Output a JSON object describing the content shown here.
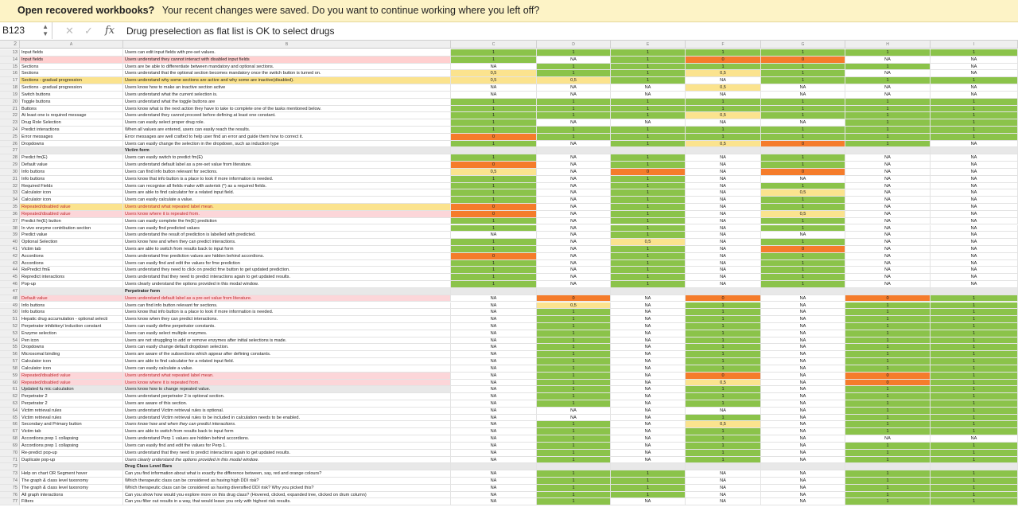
{
  "banner": {
    "question": "Open recovered workbooks?",
    "message": "Your recent changes were saved. Do you want to continue working where you left off?"
  },
  "formula_bar": {
    "cell_ref": "B123",
    "fx": "fx",
    "formula": "Drug preselection as flat list is OK to select drugs"
  },
  "sheet": {
    "top_row_label": "2",
    "columns": [
      "A",
      "B",
      "C",
      "D",
      "E",
      "F",
      "G",
      "H",
      "I"
    ],
    "rows": [
      {
        "n": "13",
        "a": "Input fields",
        "b": "Users can edit input fields with pre-set values.",
        "v": [
          "1",
          "1",
          "1",
          "1",
          "1",
          "1",
          "1"
        ]
      },
      {
        "n": "14",
        "a": "Input fields",
        "b": "Users understand they cannot interact with disabled input fields",
        "v": [
          "1",
          "NA",
          "1",
          "0",
          "0",
          "NA",
          "NA"
        ],
        "hl": "p"
      },
      {
        "n": "15",
        "a": "Sections",
        "b": "Users are be able to differentiate between mandatory and optional sections.",
        "v": [
          "NA",
          "1",
          "1",
          "1",
          "1",
          "1",
          "NA"
        ]
      },
      {
        "n": "16",
        "a": "Sections",
        "b": "Users understand that the optional section becomes mandatory once the switch button is turned on.",
        "v": [
          "0,5",
          "1",
          "1",
          "0,5",
          "1",
          "NA",
          "NA"
        ]
      },
      {
        "n": "17",
        "a": "Sections - gradual progression",
        "b": "Users understand why some sections are active and why some are inactive(disabled).",
        "v": [
          "0,5",
          "0,5",
          "1",
          "NA",
          "1",
          "1",
          "1"
        ],
        "hl": "y"
      },
      {
        "n": "18",
        "a": "Sections - gradual progression",
        "b": "Users know how to make an inactive section active",
        "v": [
          "NA",
          "NA",
          "NA",
          "0,5",
          "NA",
          "NA",
          "NA"
        ]
      },
      {
        "n": "19",
        "a": "Switch buttons",
        "b": "Users understand what the current selection is.",
        "v": [
          "NA",
          "NA",
          "NA",
          "NA",
          "NA",
          "NA",
          "NA"
        ]
      },
      {
        "n": "20",
        "a": "Toggle buttons",
        "b": "Users understand what the toggle buttons are",
        "v": [
          "1",
          "1",
          "1",
          "1",
          "1",
          "1",
          "1"
        ]
      },
      {
        "n": "21",
        "a": "Buttons",
        "b": "Users know what is the next action they have to take to complete one of the tasks mentioned below.",
        "v": [
          "1",
          "1",
          "1",
          "1",
          "1",
          "1",
          "1"
        ]
      },
      {
        "n": "22",
        "a": "At least one is required message",
        "b": "Users understand they cannot proceed before defining at least one constant.",
        "v": [
          "1",
          "1",
          "1",
          "0,5",
          "1",
          "1",
          "1"
        ]
      },
      {
        "n": "23",
        "a": "Drug Role Selection",
        "b": "Users can easily select proper drug role.",
        "v": [
          "1",
          "NA",
          "NA",
          "NA",
          "NA",
          "1",
          "1"
        ]
      },
      {
        "n": "24",
        "a": "Predict interactions",
        "b": "When all values are entered, users can easily reach the results.",
        "v": [
          "1",
          "1",
          "1",
          "1",
          "1",
          "1",
          "1"
        ]
      },
      {
        "n": "25",
        "a": "Error messages",
        "b": "Error messages are well crafted to help user find an error and guide them how to correct it.",
        "v": [
          "0",
          "1",
          "1",
          "1",
          "1",
          "1",
          "1"
        ]
      },
      {
        "n": "26",
        "a": "Dropdowns",
        "b": "Users can easily change the selection in the dropdown, such as induction type",
        "v": [
          "1",
          "NA",
          "1",
          "0,5",
          "0",
          "1",
          "NA"
        ]
      },
      {
        "n": "27",
        "a": "",
        "b": "Victim form",
        "v": [
          "",
          "",
          "",
          "",
          "",
          "",
          ""
        ],
        "sec": true
      },
      {
        "n": "28",
        "a": "Predict fm(E)",
        "b": "Users can easily switch to predict fm(E)",
        "v": [
          "1",
          "NA",
          "1",
          "NA",
          "1",
          "NA",
          "NA"
        ]
      },
      {
        "n": "29",
        "a": "Default value",
        "b": "Users understand default label as a pre-set value from literature.",
        "v": [
          "0",
          "NA",
          "1",
          "NA",
          "1",
          "NA",
          "NA"
        ]
      },
      {
        "n": "30",
        "a": "Info buttons",
        "b": "Users can find info button relevant for sections.",
        "v": [
          "0,5",
          "NA",
          "0",
          "NA",
          "0",
          "NA",
          "NA"
        ]
      },
      {
        "n": "31",
        "a": "Info buttons",
        "b": "Users know that info button is a place to look if more information is needed.",
        "v": [
          "1",
          "NA",
          "1",
          "NA",
          "NA",
          "NA",
          "NA"
        ]
      },
      {
        "n": "32",
        "a": "Required Fields",
        "b": "Users can recognise all fields make with asterisk (*) as a required fields.",
        "v": [
          "1",
          "NA",
          "1",
          "NA",
          "1",
          "NA",
          "NA"
        ]
      },
      {
        "n": "33",
        "a": "Calculator icon",
        "b": "Users are able to find calculator for a related input field.",
        "v": [
          "1",
          "NA",
          "1",
          "NA",
          "0,5",
          "NA",
          "NA"
        ]
      },
      {
        "n": "34",
        "a": "Calculator icon",
        "b": "Users can easily calculate a value.",
        "v": [
          "1",
          "NA",
          "1",
          "NA",
          "1",
          "NA",
          "NA"
        ]
      },
      {
        "n": "35",
        "a": "Repeated/disabled value",
        "b": "Users understand what repeated label mean.",
        "v": [
          "0",
          "NA",
          "1",
          "NA",
          "1",
          "NA",
          "NA"
        ],
        "hl": "yk"
      },
      {
        "n": "36",
        "a": "Repeated/disabled value",
        "b": "Users know where it is repeated from.",
        "v": [
          "0",
          "NA",
          "1",
          "NA",
          "0,5",
          "NA",
          "NA"
        ],
        "hl": "pk"
      },
      {
        "n": "37",
        "a": "Predict fm(E) button",
        "b": "Users can easily complete the fm(E) prediction",
        "v": [
          "1",
          "NA",
          "1",
          "NA",
          "1",
          "NA",
          "NA"
        ]
      },
      {
        "n": "38",
        "a": "In vivo enzyme contribution section",
        "b": "Users can easily find predicted values",
        "v": [
          "1",
          "NA",
          "1",
          "NA",
          "1",
          "NA",
          "NA"
        ]
      },
      {
        "n": "39",
        "a": "Predict value",
        "b": "Users understand the result of prediction is labelled with predicted.",
        "v": [
          "NA",
          "NA",
          "1",
          "NA",
          "NA",
          "NA",
          "NA"
        ]
      },
      {
        "n": "40",
        "a": "Optional Selection",
        "b": "Users know how and when they can predict interactions.",
        "v": [
          "1",
          "NA",
          "0,5",
          "NA",
          "1",
          "NA",
          "NA"
        ]
      },
      {
        "n": "41",
        "a": "Victim tab",
        "b": "Users are able to switch from results back to input form",
        "v": [
          "1",
          "NA",
          "1",
          "NA",
          "0",
          "NA",
          "NA"
        ]
      },
      {
        "n": "42",
        "a": "Accordions",
        "b": "Users understand fme prediction values are hidden behind accordions.",
        "v": [
          "0",
          "NA",
          "1",
          "NA",
          "1",
          "NA",
          "NA"
        ]
      },
      {
        "n": "43",
        "a": "Accordions",
        "b": "Users can easily find and edit the values for fme prediction",
        "v": [
          "1",
          "NA",
          "1",
          "NA",
          "1",
          "NA",
          "NA"
        ]
      },
      {
        "n": "44",
        "a": "RePredict fmE",
        "b": "Users understand they need to click on predict fme button to get updated prediction.",
        "v": [
          "1",
          "NA",
          "1",
          "NA",
          "1",
          "NA",
          "NA"
        ]
      },
      {
        "n": "45",
        "a": "Repredict interactions",
        "b": "Users understand that they need to predict interactions again to get updated results.",
        "v": [
          "1",
          "NA",
          "1",
          "NA",
          "1",
          "NA",
          "NA"
        ]
      },
      {
        "n": "46",
        "a": "Pop-up",
        "b": "Users clearly understand the options provided in this modal window.",
        "v": [
          "1",
          "NA",
          "1",
          "NA",
          "1",
          "NA",
          "NA"
        ]
      },
      {
        "n": "47",
        "a": "",
        "b": "Perpetrator form",
        "v": [
          "",
          "",
          "",
          "",
          "",
          "",
          ""
        ],
        "sec": true
      },
      {
        "n": "48",
        "a": "Default value",
        "b": "Users understand default label as a pre-set value from literature.",
        "v": [
          "NA",
          "0",
          "NA",
          "0",
          "NA",
          "0",
          "1"
        ],
        "hl": "pk"
      },
      {
        "n": "49",
        "a": "Info buttons",
        "b": "Users can find info button relevant for sections.",
        "v": [
          "NA",
          "0,5",
          "NA",
          "1",
          "NA",
          "1",
          "1"
        ]
      },
      {
        "n": "50",
        "a": "Info buttons",
        "b": "Users know that info button is a place to look if more information is needed.",
        "v": [
          "NA",
          "1",
          "NA",
          "1",
          "NA",
          "1",
          "1"
        ]
      },
      {
        "n": "51",
        "a": "Hepatic drug accumulation - optional selecti",
        "b": "Users know when they can predict interactions.",
        "v": [
          "NA",
          "1",
          "NA",
          "1",
          "NA",
          "1",
          "1"
        ]
      },
      {
        "n": "52",
        "a": "Perpetrator inhibitory/ induction constant",
        "b": "Users can easily define perpetrator constants.",
        "v": [
          "NA",
          "1",
          "NA",
          "1",
          "NA",
          "1",
          "1"
        ]
      },
      {
        "n": "53",
        "a": "Enzyme selection",
        "b": "Users can easily select multiple enzymes.",
        "v": [
          "NA",
          "1",
          "NA",
          "1",
          "NA",
          "1",
          "1"
        ]
      },
      {
        "n": "54",
        "a": "Pen icon",
        "b": "Users are not struggling to add or remove enzymes after initial selections is made.",
        "v": [
          "NA",
          "1",
          "NA",
          "1",
          "NA",
          "1",
          "1"
        ]
      },
      {
        "n": "55",
        "a": "Dropdowns",
        "b": "Users can easily change default dropdown selection.",
        "v": [
          "NA",
          "1",
          "NA",
          "1",
          "NA",
          "1",
          "1"
        ]
      },
      {
        "n": "56",
        "a": "Microsomal binding",
        "b": "Users are aware of the subsections which appear after defining constants.",
        "v": [
          "NA",
          "1",
          "NA",
          "1",
          "NA",
          "1",
          "1"
        ]
      },
      {
        "n": "57",
        "a": "Calculator icon",
        "b": "Users are able to find calculator for a related input field.",
        "v": [
          "NA",
          "1",
          "NA",
          "1",
          "NA",
          "1",
          "1"
        ]
      },
      {
        "n": "58",
        "a": "Calculator icon",
        "b": "Users can easily calculate a value.",
        "v": [
          "NA",
          "1",
          "NA",
          "1",
          "NA",
          "1",
          "1"
        ]
      },
      {
        "n": "59",
        "a": "Repeated/disabled value",
        "b": "Users understand what repeated label mean.",
        "v": [
          "NA",
          "1",
          "NA",
          "0",
          "NA",
          "0",
          "1"
        ],
        "hl": "pk"
      },
      {
        "n": "60",
        "a": "Repeated/disabled value",
        "b": "Users know where it is repeated from.",
        "v": [
          "NA",
          "1",
          "NA",
          "0,5",
          "NA",
          "0",
          "1"
        ],
        "hl": "pk"
      },
      {
        "n": "61",
        "a": "Updated fu mic calculation",
        "b": "Users know how to change repeated value.",
        "v": [
          "NA",
          "1",
          "NA",
          "1",
          "NA",
          "1",
          "1"
        ],
        "hl": "gr"
      },
      {
        "n": "62",
        "a": "Perpetrator 2",
        "b": "Users understand perpetrator 2 is optional section.",
        "v": [
          "NA",
          "1",
          "NA",
          "1",
          "NA",
          "1",
          "1"
        ]
      },
      {
        "n": "63",
        "a": "Perpetrator 2",
        "b": "Users are aware of this section.",
        "v": [
          "NA",
          "1",
          "NA",
          "1",
          "NA",
          "1",
          "1"
        ]
      },
      {
        "n": "64",
        "a": "Victim retrieval rules",
        "b": "Users understand Victim retrieval rules is optional.",
        "v": [
          "NA",
          "NA",
          "NA",
          "NA",
          "NA",
          "1",
          "1"
        ]
      },
      {
        "n": "65",
        "a": "Victim retrieval rules",
        "b": "Users understand Victim retrieval rules to be included in calculation needs to be enabled.",
        "v": [
          "NA",
          "NA",
          "NA",
          "1",
          "NA",
          "1",
          "1"
        ]
      },
      {
        "n": "66",
        "a": "Secondary and Primary button",
        "b": "Users know how and when they can predict interactions.",
        "v": [
          "NA",
          "1",
          "NA",
          "0,5",
          "NA",
          "1",
          "1"
        ],
        "it": true
      },
      {
        "n": "67",
        "a": "Victim tab",
        "b": "Users are able to switch from results back to input form",
        "v": [
          "NA",
          "1",
          "NA",
          "1",
          "NA",
          "1",
          "1"
        ]
      },
      {
        "n": "68",
        "a": "Accordions prep 1 collapsing",
        "b": "Users understand Perp 1 values are hidden behind accordions.",
        "v": [
          "NA",
          "1",
          "NA",
          "1",
          "NA",
          "NA",
          "NA"
        ]
      },
      {
        "n": "69",
        "a": "Accordions prep 1 collapsing",
        "b": "Users can easily find and edit the values for Perp 1.",
        "v": [
          "NA",
          "1",
          "NA",
          "1",
          "NA",
          "1",
          "1"
        ]
      },
      {
        "n": "70",
        "a": "Re-predict pop-up",
        "b": "Users understand that they need to predict interactions again to get updated results.",
        "v": [
          "NA",
          "1",
          "NA",
          "1",
          "NA",
          "1",
          "1"
        ]
      },
      {
        "n": "71",
        "a": "Duplicate pop-up",
        "b": "Users clearly understand the options provided in this modal window.",
        "v": [
          "NA",
          "1",
          "NA",
          "1",
          "NA",
          "1",
          "1"
        ],
        "it": true
      },
      {
        "n": "72",
        "a": "",
        "b": "Drug Class Level Bars",
        "v": [
          "",
          "",
          "",
          "",
          "",
          "",
          ""
        ],
        "sec": true
      },
      {
        "n": "73",
        "a": "Help on chart OR Segment hover",
        "b": "Can you find information about what is exactly the difference between, say, red and orange colours?",
        "v": [
          "NA",
          "1",
          "1",
          "NA",
          "NA",
          "1",
          "1"
        ]
      },
      {
        "n": "74",
        "a": "The graph & class level taxonomy",
        "b": "Which therapeutic class can be considered as having high DDI risk?",
        "v": [
          "NA",
          "1",
          "1",
          "NA",
          "NA",
          "1",
          "1"
        ]
      },
      {
        "n": "75",
        "a": "The graph & class level taxonomy",
        "b": "Which therapeutic class can be considered as having diversified DDI risk? Why you picked this?",
        "v": [
          "NA",
          "1",
          "1",
          "NA",
          "NA",
          "1",
          "1"
        ]
      },
      {
        "n": "76",
        "a": "All graph interactions",
        "b": "Can you show how would you explore more on this drug class? (Hovered, clicked, expanded tree, clicked on drum column)",
        "v": [
          "NA",
          "1",
          "1",
          "NA",
          "NA",
          "1",
          "1"
        ]
      },
      {
        "n": "77",
        "a": "Filters",
        "b": "Can you filter out results in a way, that would leave you only with highest risk results.",
        "v": [
          "NA",
          "1",
          "NA",
          "NA",
          "NA",
          "1",
          "1"
        ]
      }
    ]
  },
  "colors": {
    "green": "#8bc34a",
    "orange": "#f57c2b",
    "yellow": "#fbe38e",
    "pink": "#fcd6d9",
    "banner": "#fdf3c6"
  }
}
